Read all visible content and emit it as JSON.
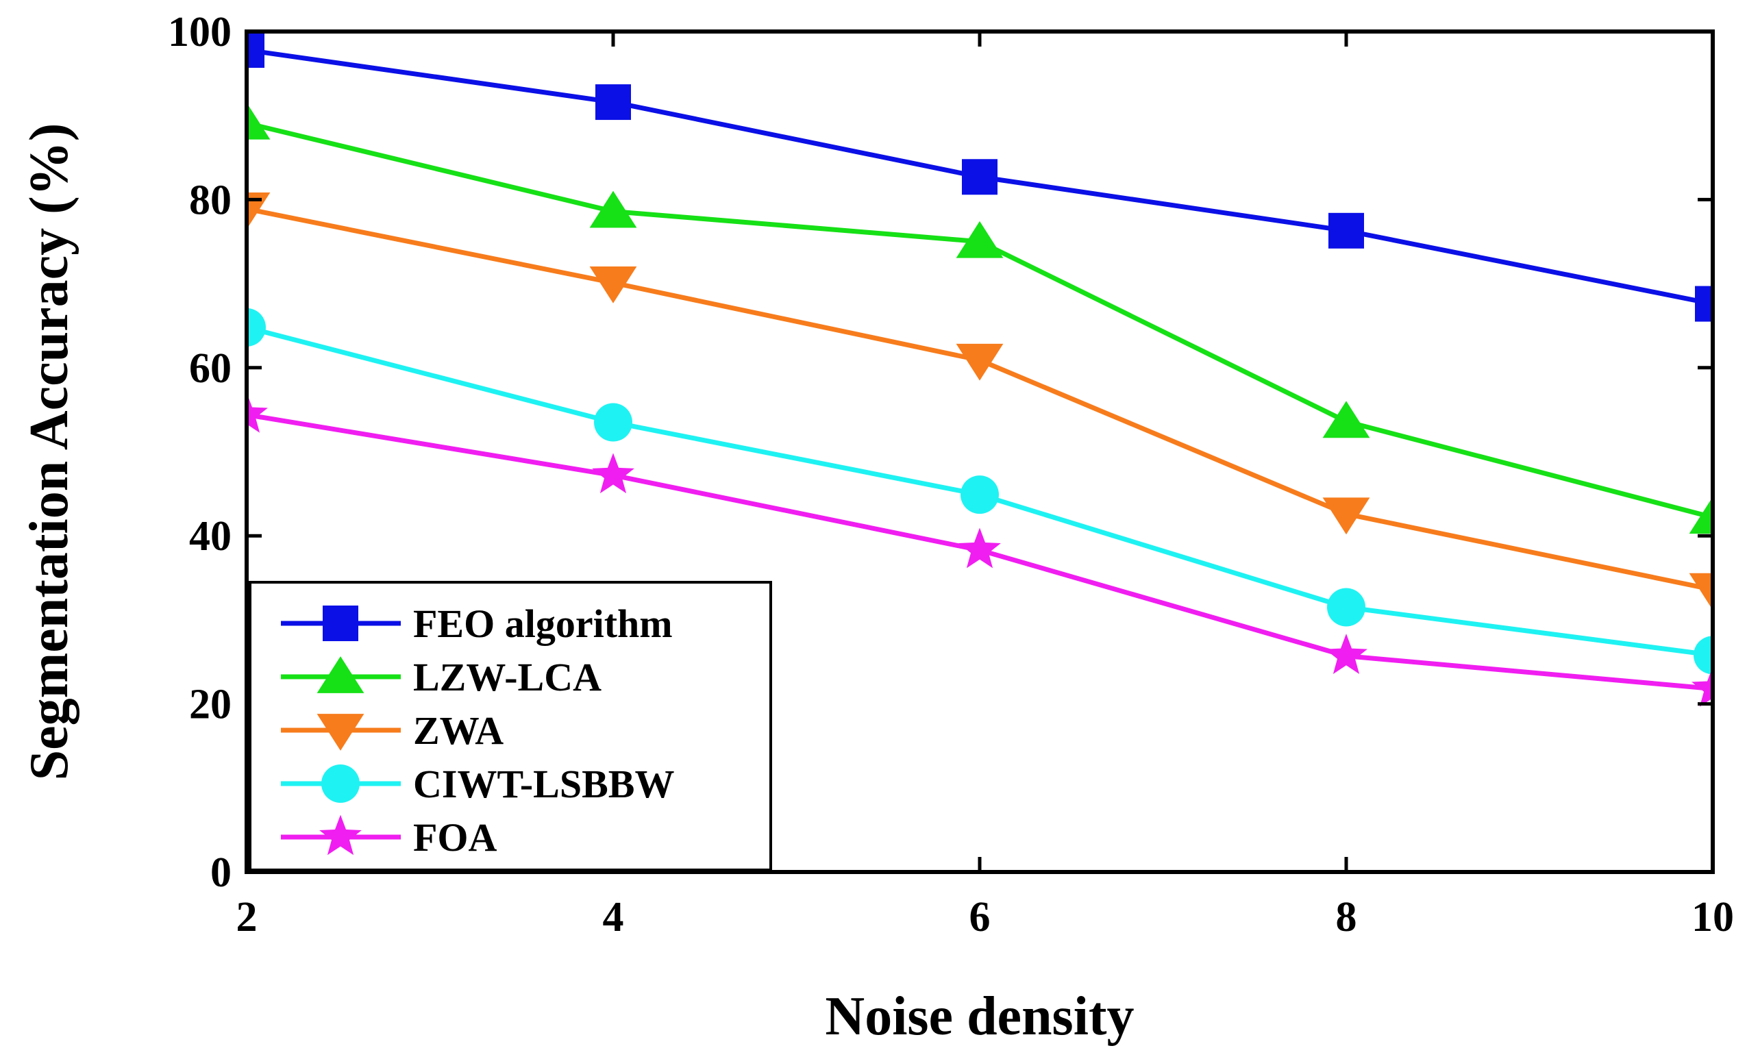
{
  "chart_data": {
    "type": "line",
    "title": "",
    "xlabel": "Noise density",
    "ylabel": "Segmentation Accuracy (%)",
    "x": [
      2,
      4,
      6,
      8,
      10
    ],
    "xlim": [
      2,
      10
    ],
    "ylim": [
      0,
      100
    ],
    "xticks": [
      "2",
      "4",
      "6",
      "8",
      "10"
    ],
    "yticks": [
      "0",
      "20",
      "40",
      "60",
      "80",
      "100"
    ],
    "grid": false,
    "legend_position": "bottom-left",
    "series": [
      {
        "name": "FEO algorithm",
        "marker": "square",
        "color": "#0b10e6",
        "values": [
          97.8,
          91.6,
          82.7,
          76.3,
          67.6
        ]
      },
      {
        "name": "LZW-LCA",
        "marker": "triangle-up",
        "color": "#16e016",
        "values": [
          89.1,
          78.6,
          75.0,
          53.6,
          42.2
        ]
      },
      {
        "name": "ZWA",
        "marker": "triangle-down",
        "color": "#f77c1c",
        "values": [
          78.9,
          70.1,
          60.9,
          42.6,
          33.6
        ]
      },
      {
        "name": "CIWT-LSBBW",
        "marker": "circle",
        "color": "#1ff2f2",
        "values": [
          64.8,
          53.5,
          44.9,
          31.5,
          25.8
        ]
      },
      {
        "name": "FOA",
        "marker": "star",
        "color": "#f01ef0",
        "values": [
          54.4,
          47.2,
          38.3,
          25.7,
          21.8
        ]
      }
    ]
  }
}
